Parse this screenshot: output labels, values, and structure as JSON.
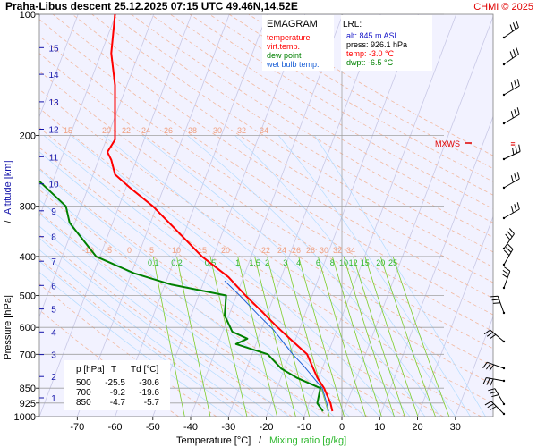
{
  "header": {
    "title": "Praha-Libus   descent   25.12.2025 07:15 UTC   49.46N,14.52E",
    "copyright": "CHMI © 2025"
  },
  "legend": {
    "title": "EMAGRAM",
    "items": [
      {
        "label": "temperature",
        "color": "#ff0000"
      },
      {
        "label": "virt.temp.",
        "color": "#ff0000"
      },
      {
        "label": "dew point",
        "color": "#008000"
      },
      {
        "label": "wet bulb temp.",
        "color": "#1a5fd6"
      }
    ]
  },
  "lrl": {
    "title": "LRL:",
    "alt": "alt: 845 m ASL",
    "press": "press: 926.1 hPa",
    "temp": "temp: -3.0 °C",
    "dwpt": "dwpt: -6.5 °C"
  },
  "mxws_label": "MXWS",
  "table": {
    "headers": [
      "p [hPa]",
      "T",
      "Td [°C]"
    ],
    "rows": [
      [
        "500",
        "-25.5",
        "-30.6"
      ],
      [
        "700",
        "-9.2",
        "-19.6"
      ],
      [
        "850",
        "-4.7",
        "-5.7"
      ]
    ]
  },
  "axes": {
    "xlabel_temp": "Temperature [°C]",
    "xlabel_sep": "/",
    "xlabel_mix": "Mixing ratio [g/kg]",
    "ylabel_pressure": "Pressure [hPa]",
    "ylabel_sep": "/",
    "ylabel_alt": "Altitude [km]"
  },
  "colors": {
    "temperature": "#ff0000",
    "dewpoint": "#008000",
    "wetbulb": "#1a5fd6",
    "dry_adiabat": "#f2b9a0",
    "moist_adiabat": "#b4dcff",
    "mixing_ratio": "#7ccd28",
    "isotherm": "#c8c8e6",
    "plot_bg": "#f2f2ff",
    "altitude": "#1414aa"
  },
  "chart_data": {
    "type": "line",
    "title": "",
    "xlabel": "Temperature [°C]",
    "ylabel": "Pressure [hPa]",
    "xlim": [
      -80,
      40
    ],
    "ylim": [
      1000,
      100
    ],
    "yscale": "log",
    "xticks": [
      -70,
      -60,
      -50,
      -40,
      -30,
      -20,
      -10,
      0,
      10,
      20,
      30
    ],
    "yticks": [
      100,
      200,
      300,
      400,
      500,
      600,
      700,
      850,
      925,
      1000
    ],
    "altitude_ticks": [
      {
        "km": 1,
        "p": 898
      },
      {
        "km": 2,
        "p": 795
      },
      {
        "km": 3,
        "p": 701
      },
      {
        "km": 4,
        "p": 616
      },
      {
        "km": 5,
        "p": 540
      },
      {
        "km": 6,
        "p": 472
      },
      {
        "km": 7,
        "p": 411
      },
      {
        "km": 8,
        "p": 357
      },
      {
        "km": 9,
        "p": 308
      },
      {
        "km": 10,
        "p": 264
      },
      {
        "km": 11,
        "p": 226
      },
      {
        "km": 12,
        "p": 193
      },
      {
        "km": 13,
        "p": 165
      },
      {
        "km": 14,
        "p": 141
      },
      {
        "km": 15,
        "p": 121
      }
    ],
    "mixing_ratio_labels": [
      "0.1",
      "0.2",
      "0.5",
      "1",
      "1.5",
      "2",
      "3",
      "4",
      "6",
      "8",
      "10",
      "12",
      "15",
      "20",
      "25"
    ],
    "isotherm_labels_lower": [
      "-10",
      "-5",
      "0",
      "5",
      "10",
      "15",
      "20",
      "22",
      "24",
      "26",
      "28",
      "30",
      "32",
      "34"
    ],
    "isotherm_labels_upper": [
      "-15",
      "20",
      "22",
      "24",
      "26",
      "28",
      "30",
      "32",
      "34"
    ],
    "series": [
      {
        "name": "temperature",
        "points": [
          [
            -2.5,
            970
          ],
          [
            -3.0,
            926
          ],
          [
            -4.7,
            850
          ],
          [
            -6.5,
            800
          ],
          [
            -7.8,
            750
          ],
          [
            -9.2,
            700
          ],
          [
            -13,
            650
          ],
          [
            -17,
            600
          ],
          [
            -21,
            550
          ],
          [
            -25.5,
            500
          ],
          [
            -30,
            450
          ],
          [
            -37,
            400
          ],
          [
            -43,
            350
          ],
          [
            -50,
            300
          ],
          [
            -56,
            270
          ],
          [
            -60,
            250
          ],
          [
            -61,
            230
          ],
          [
            -62,
            220
          ],
          [
            -60,
            205
          ],
          [
            -60,
            180
          ],
          [
            -60,
            150
          ],
          [
            -61,
            125
          ],
          [
            -60,
            100
          ]
        ]
      },
      {
        "name": "dew point",
        "points": [
          [
            -5,
            970
          ],
          [
            -6.5,
            926
          ],
          [
            -5.7,
            850
          ],
          [
            -12,
            800
          ],
          [
            -16,
            760
          ],
          [
            -19.6,
            700
          ],
          [
            -28,
            660
          ],
          [
            -25,
            640
          ],
          [
            -29,
            615
          ],
          [
            -31,
            560
          ],
          [
            -30.6,
            500
          ],
          [
            -45,
            470
          ],
          [
            -55,
            440
          ],
          [
            -65,
            400
          ],
          [
            -72,
            330
          ],
          [
            -73,
            300
          ],
          [
            -80,
            260
          ]
        ]
      },
      {
        "name": "wet bulb temp.",
        "points": [
          [
            -3.5,
            970
          ],
          [
            -4,
            926
          ],
          [
            -5.2,
            850
          ],
          [
            -10,
            750
          ],
          [
            -13,
            700
          ],
          [
            -18,
            610
          ],
          [
            -22,
            560
          ],
          [
            -27,
            500
          ],
          [
            -31,
            460
          ]
        ]
      }
    ],
    "grid": true
  }
}
